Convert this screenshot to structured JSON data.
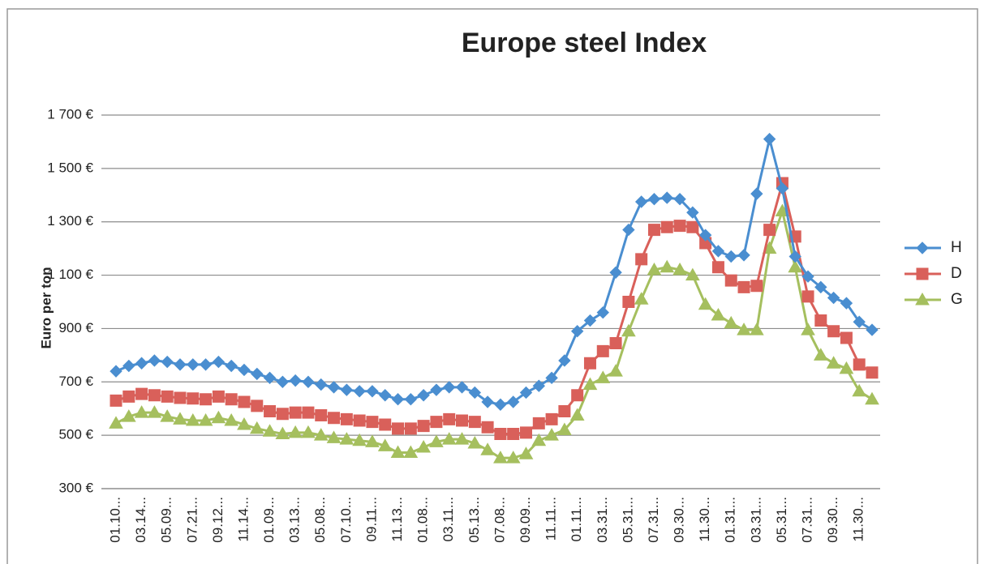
{
  "chart_data": {
    "type": "line",
    "title": "Europe  steel Index",
    "y_axis_label": "Euro per ton",
    "categories": [
      "01.10...",
      null,
      "03.14...",
      null,
      "05.09...",
      null,
      "07.21...",
      null,
      "09.12...",
      null,
      "11.14...",
      null,
      "01.09...",
      null,
      "03.13...",
      null,
      "05.08...",
      null,
      "07.10...",
      null,
      "09.11...",
      null,
      "11.13...",
      null,
      "01.08...",
      null,
      "03.11...",
      null,
      "05.13...",
      null,
      "07.08...",
      null,
      "09.09...",
      null,
      "11.11...",
      null,
      "01.11...",
      null,
      "03.31...",
      null,
      "05.31...",
      null,
      "07.31...",
      null,
      "09.30...",
      null,
      "11.30...",
      null,
      "01.31...",
      null,
      "03.31...",
      null,
      "05.31...",
      null,
      "07.31...",
      null,
      "09.30...",
      null,
      "11.30...",
      null
    ],
    "series": [
      {
        "name": "H",
        "color": "#4a8ed0",
        "marker": "diamond",
        "values": [
          740,
          760,
          770,
          780,
          775,
          765,
          765,
          765,
          775,
          760,
          745,
          730,
          715,
          700,
          705,
          700,
          690,
          680,
          670,
          665,
          665,
          650,
          635,
          635,
          650,
          670,
          680,
          680,
          660,
          625,
          615,
          625,
          660,
          685,
          715,
          780,
          890,
          930,
          960,
          1110,
          1270,
          1375,
          1385,
          1390,
          1385,
          1335,
          1250,
          1190,
          1170,
          1175,
          1405,
          1610,
          1425,
          1170,
          1095,
          1055,
          1015,
          995,
          925,
          895
        ]
      },
      {
        "name": "D",
        "color": "#d9605a",
        "marker": "square",
        "values": [
          630,
          645,
          655,
          650,
          645,
          640,
          638,
          635,
          645,
          635,
          625,
          610,
          590,
          580,
          585,
          585,
          575,
          565,
          560,
          555,
          550,
          540,
          525,
          525,
          535,
          550,
          560,
          555,
          550,
          530,
          505,
          505,
          510,
          545,
          560,
          590,
          650,
          770,
          815,
          845,
          1000,
          1160,
          1270,
          1280,
          1285,
          1280,
          1220,
          1130,
          1080,
          1055,
          1060,
          1270,
          1445,
          1245,
          1020,
          930,
          890,
          865,
          765,
          735
        ]
      },
      {
        "name": "G",
        "color": "#a5bf5e",
        "marker": "triangle",
        "values": [
          545,
          570,
          585,
          585,
          570,
          560,
          555,
          555,
          565,
          555,
          540,
          525,
          515,
          505,
          510,
          510,
          500,
          490,
          485,
          480,
          475,
          460,
          435,
          435,
          455,
          475,
          485,
          485,
          470,
          445,
          415,
          415,
          430,
          480,
          500,
          520,
          575,
          690,
          715,
          740,
          890,
          1010,
          1120,
          1130,
          1120,
          1100,
          990,
          950,
          920,
          895,
          895,
          1200,
          1340,
          1130,
          895,
          800,
          770,
          750,
          665,
          635
        ]
      }
    ],
    "ylim": [
      300,
      1700
    ],
    "yticks": [
      {
        "value": 300,
        "label": "300 €"
      },
      {
        "value": 500,
        "label": "500 €"
      },
      {
        "value": 700,
        "label": "700 €"
      },
      {
        "value": 900,
        "label": "900 €"
      },
      {
        "value": 1100,
        "label": "1 100 €"
      },
      {
        "value": 1300,
        "label": "1 300 €"
      },
      {
        "value": 1500,
        "label": "1 500 €"
      },
      {
        "value": 1700,
        "label": "1 700 €"
      }
    ],
    "grid": true,
    "legend": "right"
  }
}
